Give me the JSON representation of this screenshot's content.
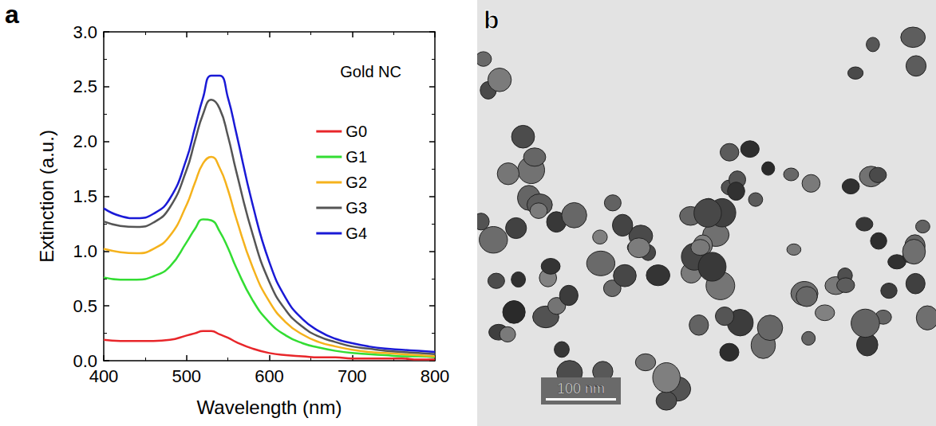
{
  "chart_data": {
    "type": "line",
    "panel_label": "a",
    "annotations": [
      "Gold NC"
    ],
    "x_label": "Wavelength (nm)",
    "y_label": "Extinction (a.u.)",
    "x": [
      400,
      420,
      440,
      460,
      480,
      500,
      510,
      520,
      530,
      540,
      550,
      560,
      580,
      600,
      620,
      640,
      660,
      680,
      700,
      720,
      740,
      760,
      780,
      800
    ],
    "series": [
      {
        "name": "G0",
        "color": "#e8262a",
        "values": [
          0.19,
          0.18,
          0.18,
          0.18,
          0.19,
          0.23,
          0.25,
          0.27,
          0.27,
          0.24,
          0.21,
          0.17,
          0.11,
          0.07,
          0.05,
          0.04,
          0.03,
          0.03,
          0.02,
          0.02,
          0.02,
          0.02,
          0.01,
          0.01
        ]
      },
      {
        "name": "G1",
        "color": "#33dd33",
        "values": [
          0.76,
          0.74,
          0.74,
          0.77,
          0.86,
          1.08,
          1.2,
          1.29,
          1.28,
          1.18,
          1.03,
          0.85,
          0.55,
          0.35,
          0.23,
          0.16,
          0.12,
          0.09,
          0.07,
          0.06,
          0.05,
          0.04,
          0.04,
          0.03
        ]
      },
      {
        "name": "G2",
        "color": "#f5b21c",
        "values": [
          1.02,
          0.99,
          0.98,
          1.02,
          1.14,
          1.42,
          1.62,
          1.8,
          1.86,
          1.76,
          1.56,
          1.3,
          0.85,
          0.54,
          0.35,
          0.24,
          0.17,
          0.13,
          0.1,
          0.08,
          0.07,
          0.06,
          0.05,
          0.04
        ]
      },
      {
        "name": "G3",
        "color": "#555555",
        "values": [
          1.27,
          1.23,
          1.22,
          1.26,
          1.4,
          1.74,
          2.0,
          2.25,
          2.38,
          2.3,
          2.05,
          1.73,
          1.15,
          0.72,
          0.46,
          0.31,
          0.22,
          0.17,
          0.13,
          0.11,
          0.09,
          0.08,
          0.07,
          0.06
        ]
      },
      {
        "name": "G4",
        "color": "#1a1ad6",
        "values": [
          1.39,
          1.32,
          1.3,
          1.34,
          1.48,
          1.84,
          2.12,
          2.4,
          2.6,
          2.6,
          2.4,
          2.08,
          1.42,
          0.9,
          0.57,
          0.38,
          0.27,
          0.2,
          0.16,
          0.13,
          0.11,
          0.1,
          0.09,
          0.08
        ]
      }
    ],
    "xlim": [
      400,
      800
    ],
    "xticks": [
      400,
      500,
      600,
      700,
      800
    ],
    "ylim": [
      0,
      3
    ],
    "yticks": [
      {
        "value": 0,
        "label": "0.0"
      },
      {
        "value": 0.5,
        "label": "0.5"
      },
      {
        "value": 1,
        "label": "1.0"
      },
      {
        "value": 1.5,
        "label": "1.5"
      },
      {
        "value": 2,
        "label": "2.0"
      },
      {
        "value": 2.5,
        "label": "2.5"
      },
      {
        "value": 3,
        "label": "3.0"
      }
    ],
    "grid": false,
    "legend": "upper right",
    "line_style": "solid"
  },
  "image_panel": {
    "panel_label": "b",
    "scale_bar_label": "100 nm"
  }
}
